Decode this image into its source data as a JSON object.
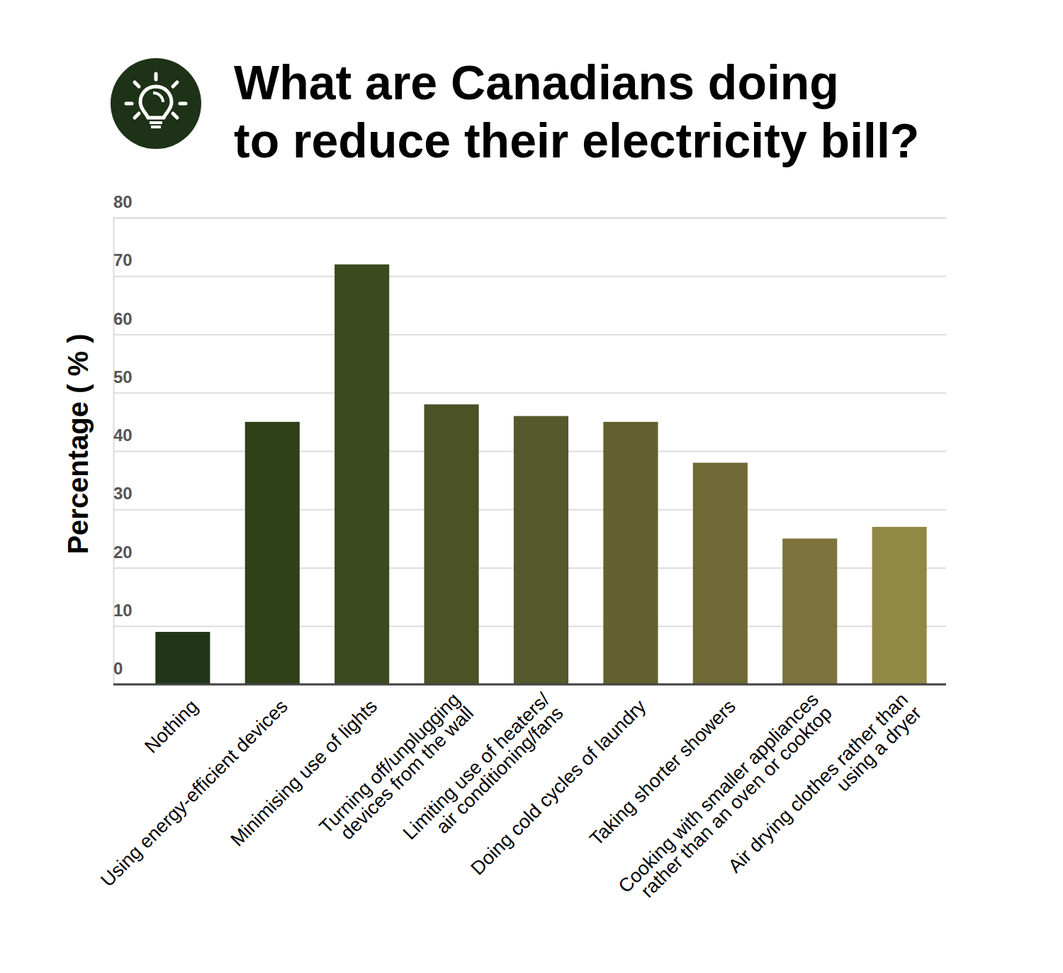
{
  "chart_data": {
    "type": "bar",
    "title": "What are Canadians doing\nto reduce their electricity bill?",
    "y_label": "Percentage ( % )",
    "categories": [
      "Nothing",
      "Using energy-efficient devices",
      "Minimising use of lights",
      "Turning off/unplugging\ndevices from the wall",
      "Limiting use of heaters/\nair conditioning/fans",
      "Doing cold cycles of laundry",
      "Taking shorter showers",
      "Cooking with smaller appliances\nrather than an oven or cooktop",
      "Air drying clothes rather than\nusing a dryer"
    ],
    "values": [
      9,
      45,
      72,
      48,
      46,
      45,
      38,
      25,
      27
    ],
    "colors": [
      "#213518",
      "#2f4019",
      "#3d4a20",
      "#4a5226",
      "#55592b",
      "#62602f",
      "#6f6935",
      "#7e733c",
      "#928845"
    ],
    "ylim": [
      0,
      80
    ],
    "yticks": [
      0,
      10,
      20,
      30,
      40,
      50,
      60,
      70,
      80
    ],
    "grid": true
  }
}
